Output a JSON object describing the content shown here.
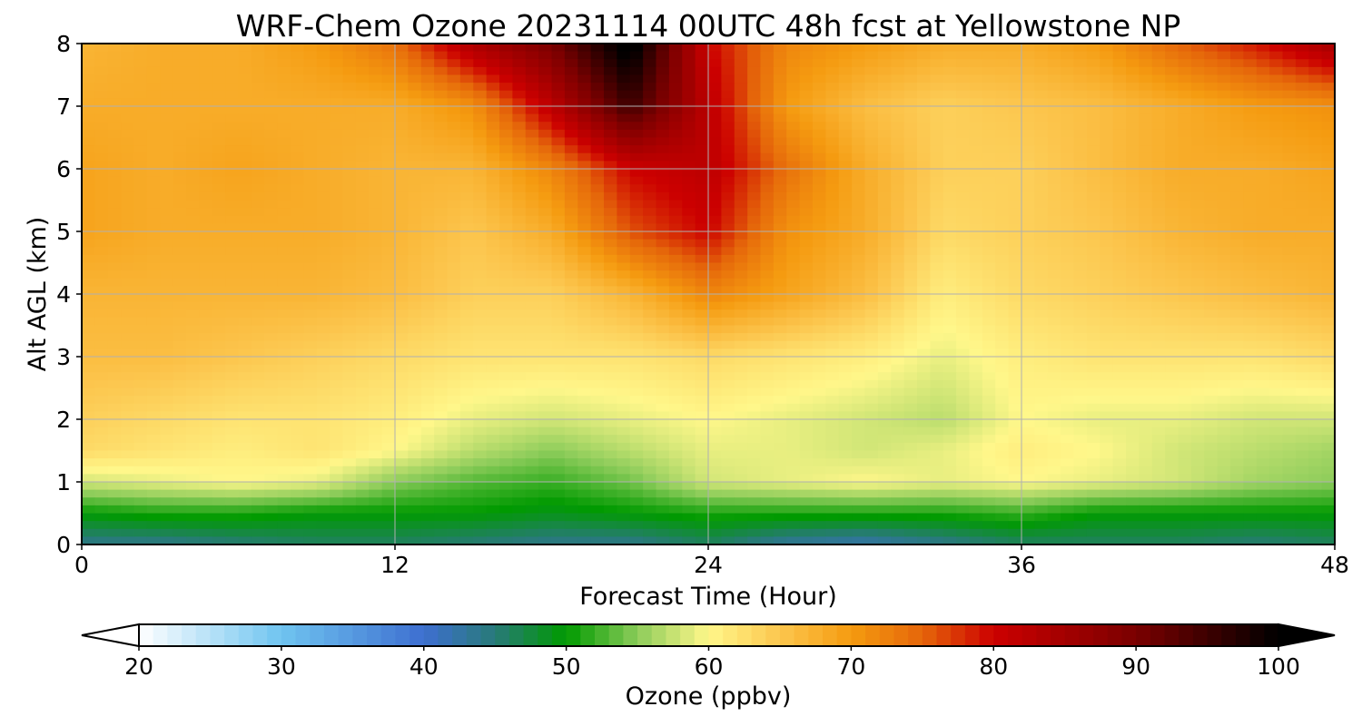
{
  "chart_data": {
    "type": "heatmap",
    "title": "WRF-Chem Ozone  20231114 00UTC 48h fcst at Yellowstone NP",
    "xlabel": "Forecast Time (Hour)",
    "ylabel": "Alt AGL (km)",
    "xlim": [
      0,
      48
    ],
    "ylim": [
      0,
      8
    ],
    "xticks": [
      0,
      12,
      24,
      36,
      48
    ],
    "yticks": [
      0,
      1,
      2,
      3,
      4,
      5,
      6,
      7,
      8
    ],
    "grid": true,
    "value_grid": {
      "x": [
        0,
        3,
        6,
        9,
        12,
        15,
        18,
        21,
        24,
        27,
        30,
        33,
        36,
        39,
        42,
        45,
        48
      ],
      "y": [
        0,
        0.5,
        1,
        1.5,
        2,
        3,
        4,
        5,
        6,
        7,
        8
      ],
      "z": [
        [
          44,
          44,
          45,
          46,
          46,
          45,
          44,
          44,
          46,
          43,
          42,
          44,
          46,
          46,
          46,
          45,
          46
        ],
        [
          50,
          51,
          51,
          50,
          50,
          50,
          49,
          50,
          51,
          51,
          51,
          51,
          52,
          50,
          50,
          50,
          50
        ],
        [
          58,
          59,
          60,
          59,
          55,
          53,
          52,
          54,
          58,
          59,
          60,
          59,
          60,
          59,
          58,
          56,
          55
        ],
        [
          63,
          62,
          61,
          62,
          60,
          57,
          55,
          57,
          59,
          59,
          58,
          59,
          61,
          60,
          58,
          57,
          56
        ],
        [
          64,
          63,
          62,
          62,
          61,
          59,
          58,
          59,
          60,
          59,
          58,
          57,
          60,
          59,
          59,
          58,
          58
        ],
        [
          66,
          66,
          65,
          64,
          63,
          62,
          62,
          62,
          63,
          62,
          61,
          59,
          61,
          62,
          62,
          62,
          63
        ],
        [
          67,
          67,
          67,
          67,
          66,
          64,
          64,
          67,
          72,
          69,
          66,
          61,
          63,
          64,
          65,
          66,
          67
        ],
        [
          69,
          68,
          68,
          68,
          67,
          65,
          68,
          76,
          80,
          71,
          68,
          63,
          64,
          65,
          67,
          68,
          68
        ],
        [
          69,
          68,
          69,
          68,
          67,
          67,
          72,
          80,
          82,
          74,
          68,
          64,
          64,
          66,
          68,
          68,
          69
        ],
        [
          68,
          68,
          68,
          68,
          68,
          71,
          82,
          95,
          82,
          70,
          66,
          64,
          65,
          66,
          68,
          70,
          71
        ],
        [
          67,
          68,
          68,
          70,
          74,
          84,
          90,
          102,
          80,
          72,
          70,
          68,
          68,
          70,
          75,
          79,
          85
        ]
      ]
    },
    "colorbar": {
      "label": "Ozone  (ppbv)",
      "min": 20,
      "max": 100,
      "ticks": [
        20,
        30,
        40,
        50,
        60,
        70,
        80,
        90,
        100
      ],
      "extend": "both",
      "stops": [
        {
          "v": 20,
          "c": "#ffffff"
        },
        {
          "v": 30,
          "c": "#6fc4f0"
        },
        {
          "v": 40,
          "c": "#3e6fd0"
        },
        {
          "v": 45,
          "c": "#287a78"
        },
        {
          "v": 50,
          "c": "#009a00"
        },
        {
          "v": 55,
          "c": "#8ccc5a"
        },
        {
          "v": 60,
          "c": "#fff78a"
        },
        {
          "v": 65,
          "c": "#fcc64e"
        },
        {
          "v": 70,
          "c": "#f59b10"
        },
        {
          "v": 75,
          "c": "#e5660a"
        },
        {
          "v": 80,
          "c": "#cc0000"
        },
        {
          "v": 90,
          "c": "#7a0000"
        },
        {
          "v": 100,
          "c": "#000000"
        }
      ]
    }
  }
}
